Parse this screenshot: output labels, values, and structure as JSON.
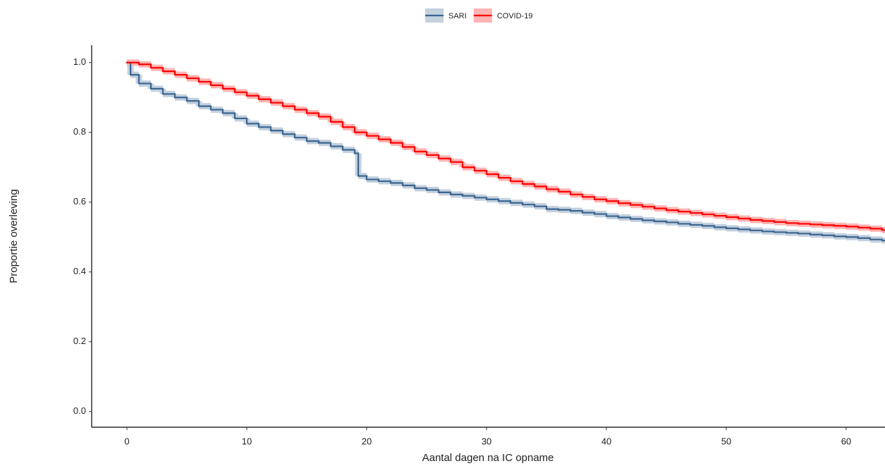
{
  "chart_data": {
    "type": "step",
    "xlabel": "Aantal dagen na IC opname",
    "ylabel": "Proportie overleving",
    "legend": "top",
    "x": [
      0,
      0.3,
      1,
      2,
      3,
      4,
      5,
      6,
      7,
      8,
      9,
      10,
      11,
      12,
      13,
      14,
      15,
      16,
      17,
      18,
      19,
      19.3,
      20,
      21,
      22,
      23,
      24,
      25,
      26,
      27,
      28,
      29,
      30,
      31,
      32,
      33,
      34,
      35,
      36,
      37,
      38,
      39,
      40,
      41,
      42,
      43,
      44,
      45,
      46,
      47,
      48,
      49,
      50,
      51,
      52,
      53,
      54,
      55,
      56,
      57,
      58,
      59,
      60,
      61,
      62,
      63
    ],
    "series": [
      {
        "name": "SARI",
        "color": "#3a6591",
        "band_color": "#c3d0dd",
        "values": [
          1.0,
          0.965,
          0.94,
          0.925,
          0.91,
          0.9,
          0.89,
          0.875,
          0.865,
          0.855,
          0.84,
          0.825,
          0.815,
          0.805,
          0.795,
          0.785,
          0.775,
          0.77,
          0.76,
          0.75,
          0.74,
          0.675,
          0.665,
          0.66,
          0.655,
          0.648,
          0.64,
          0.635,
          0.628,
          0.622,
          0.618,
          0.613,
          0.608,
          0.603,
          0.598,
          0.593,
          0.588,
          0.58,
          0.578,
          0.575,
          0.57,
          0.566,
          0.56,
          0.556,
          0.552,
          0.548,
          0.545,
          0.542,
          0.538,
          0.535,
          0.532,
          0.528,
          0.525,
          0.522,
          0.519,
          0.516,
          0.514,
          0.512,
          0.51,
          0.507,
          0.505,
          0.502,
          0.5,
          0.497,
          0.493,
          0.49
        ]
      },
      {
        "name": "COVID-19",
        "color": "#ff0000",
        "band_color": "#ffb3b3",
        "values": [
          1.0,
          1.0,
          0.995,
          0.985,
          0.975,
          0.965,
          0.955,
          0.945,
          0.935,
          0.925,
          0.915,
          0.905,
          0.895,
          0.885,
          0.875,
          0.865,
          0.855,
          0.845,
          0.83,
          0.815,
          0.8,
          0.8,
          0.79,
          0.78,
          0.77,
          0.758,
          0.745,
          0.735,
          0.725,
          0.715,
          0.7,
          0.69,
          0.68,
          0.67,
          0.66,
          0.652,
          0.645,
          0.637,
          0.63,
          0.622,
          0.615,
          0.608,
          0.603,
          0.597,
          0.592,
          0.587,
          0.582,
          0.577,
          0.573,
          0.569,
          0.565,
          0.561,
          0.557,
          0.553,
          0.549,
          0.546,
          0.543,
          0.54,
          0.538,
          0.536,
          0.534,
          0.532,
          0.53,
          0.527,
          0.524,
          0.52
        ]
      }
    ],
    "xlim": [
      -2.94,
      63.24
    ],
    "ylim": [
      -0.045,
      1.05
    ],
    "xticks": [
      0,
      10,
      20,
      30,
      40,
      50,
      60
    ],
    "yticks": [
      {
        "value": 0,
        "label": "0.0"
      },
      {
        "value": 0.2,
        "label": "0.2"
      },
      {
        "value": 0.4,
        "label": "0.4"
      },
      {
        "value": 0.6,
        "label": "0.6"
      },
      {
        "value": 0.8,
        "label": "0.8"
      },
      {
        "value": 1,
        "label": "1.0"
      }
    ],
    "grid": false
  }
}
